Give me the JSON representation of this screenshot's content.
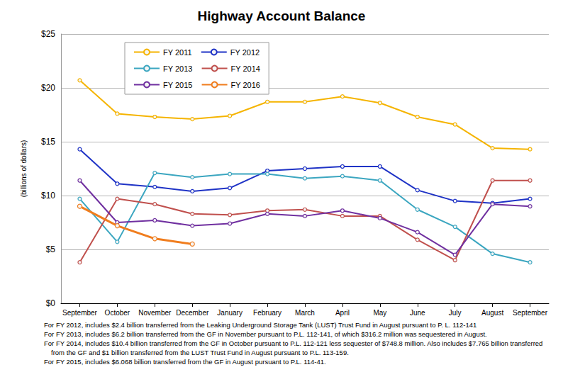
{
  "chart_data": {
    "type": "line",
    "title": "Highway Account Balance",
    "y_label": "(billions of dollars)",
    "categories": [
      "September",
      "October",
      "November",
      "December",
      "January",
      "February",
      "March",
      "April",
      "May",
      "June",
      "July",
      "August",
      "September"
    ],
    "series": [
      {
        "name": "FY 2011",
        "color": "#f5b400",
        "values": [
          20.7,
          17.6,
          17.3,
          17.1,
          17.4,
          18.7,
          18.7,
          19.2,
          18.6,
          17.3,
          16.6,
          14.4,
          14.3
        ]
      },
      {
        "name": "FY 2012",
        "color": "#1f33c6",
        "values": [
          14.3,
          11.1,
          10.8,
          10.4,
          10.7,
          12.3,
          12.5,
          12.7,
          12.7,
          10.5,
          9.5,
          9.3,
          9.7
        ]
      },
      {
        "name": "FY 2013",
        "color": "#3ba6c0",
        "values": [
          9.7,
          5.7,
          12.1,
          11.7,
          12.0,
          12.0,
          11.6,
          11.8,
          11.4,
          8.7,
          7.1,
          4.6,
          3.8
        ]
      },
      {
        "name": "FY 2014",
        "color": "#c0504d",
        "values": [
          3.8,
          9.7,
          9.2,
          8.3,
          8.2,
          8.6,
          8.7,
          8.1,
          8.1,
          5.9,
          4.0,
          11.4,
          11.4
        ]
      },
      {
        "name": "FY 2015",
        "color": "#7030a0",
        "values": [
          11.4,
          7.5,
          7.7,
          7.2,
          7.4,
          8.3,
          8.1,
          8.6,
          7.9,
          6.6,
          4.5,
          9.2,
          9.0
        ]
      },
      {
        "name": "FY 2016",
        "color": "#f07d1e",
        "values": [
          9.0,
          7.2,
          6.0,
          5.5,
          null,
          null,
          null,
          null,
          null,
          null,
          null,
          null,
          null
        ]
      }
    ],
    "ylim": [
      0,
      25
    ],
    "yticks": [
      {
        "value": 0,
        "label": "$0"
      },
      {
        "value": 5,
        "label": "$5"
      },
      {
        "value": 10,
        "label": "$10"
      },
      {
        "value": 15,
        "label": "$15"
      },
      {
        "value": 20,
        "label": "$20"
      },
      {
        "value": 25,
        "label": "$25"
      }
    ],
    "grid": true,
    "legend": "upper left",
    "marker": "circle",
    "line_style": "solid",
    "annotations": [
      "For FY 2012, includes $2.4 billion transferred from the Leaking Underground Storage Tank (LUST) Trust Fund in August pursuant to P. L. 112-141",
      "For FY 2013, includes $6.2 billion transferred from the GF in November pursuant to P.L. 112-141, of which $316.2 million was sequestered in August.",
      "For FY 2014, includes $10.4 billion transferred from the GF in October pursuant to P.L. 112-121 less sequester of $748.8 million.  Also includes $7.765 billion transferred from the GF and $1 billion transferred from the LUST Trust Fund in August pursuant to P.L. 113-159.",
      "For FY 2015, includes $6.068 billion transferred from the GF in August pursuant to P.L. 114-41."
    ]
  }
}
